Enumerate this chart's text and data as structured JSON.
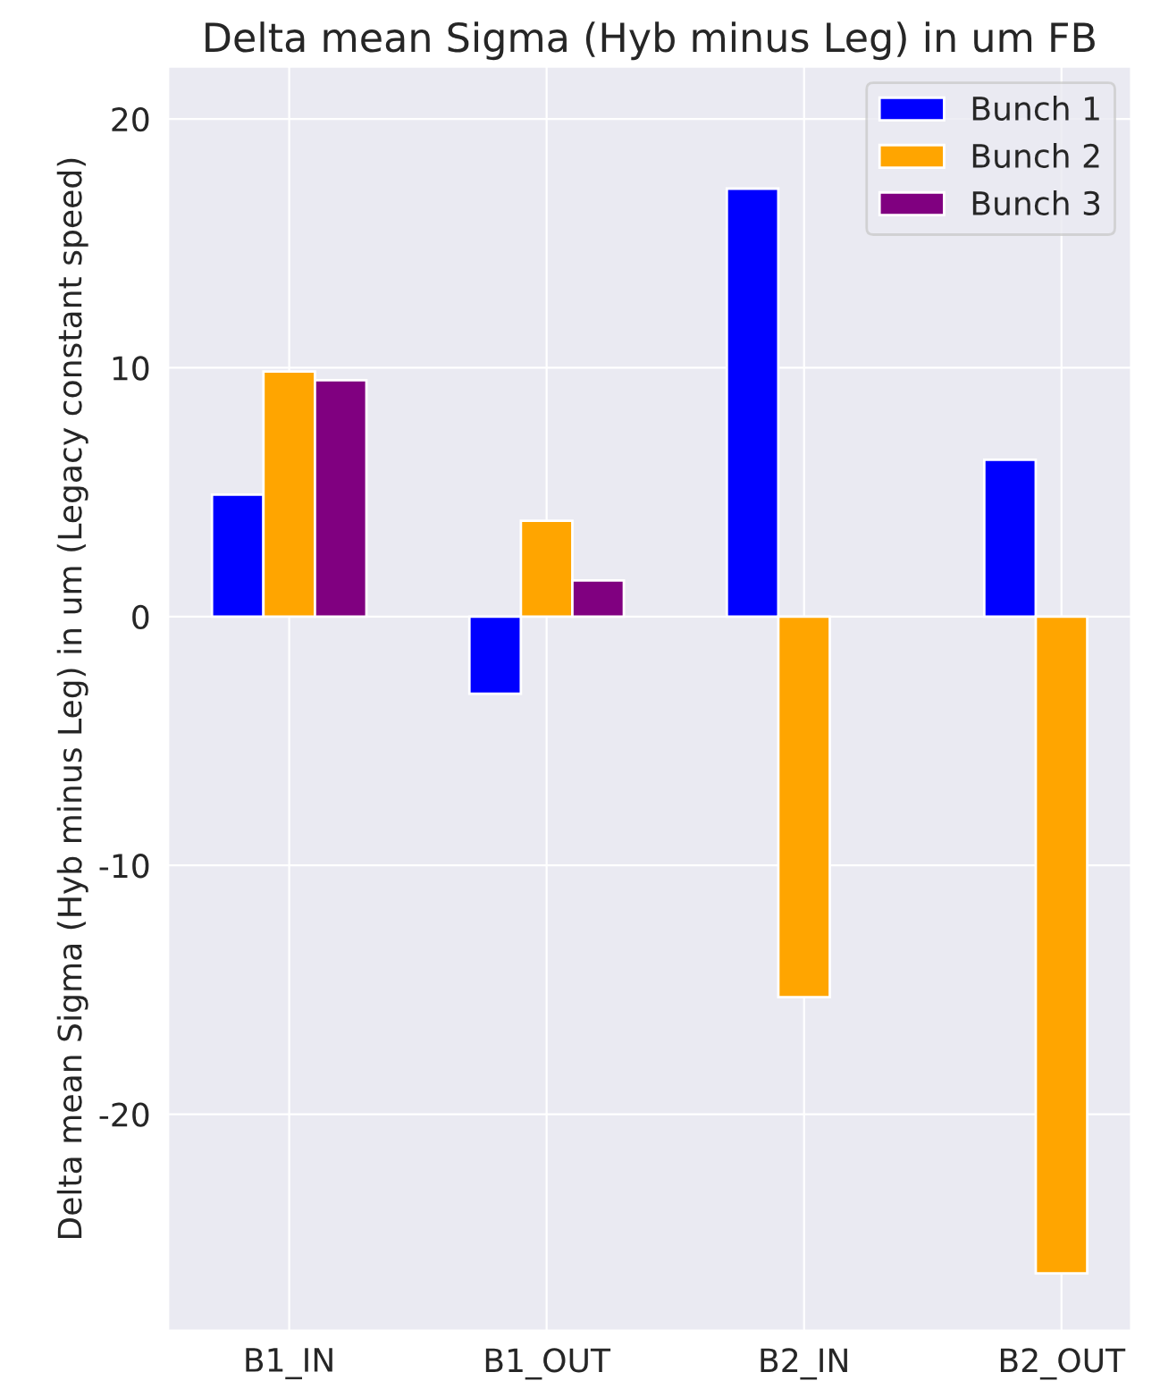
{
  "chart_data": {
    "type": "bar",
    "title": "Delta mean Sigma (Hyb minus Leg) in um FB",
    "ylabel": "Delta mean Sigma (Hyb minus Leg) in um (Legacy constant speed)",
    "categories": [
      "B1_IN",
      "B1_OUT",
      "B2_IN",
      "B2_OUT"
    ],
    "series": [
      {
        "name": "Bunch 1",
        "color": "#0000ff",
        "values": [
          4.9,
          -3.1,
          17.2,
          6.3
        ]
      },
      {
        "name": "Bunch 2",
        "color": "#ffa500",
        "values": [
          9.85,
          3.85,
          -15.3,
          -26.4
        ]
      },
      {
        "name": "Bunch 3",
        "color": "#800080",
        "values": [
          9.5,
          1.45,
          null,
          null
        ]
      }
    ],
    "ylim": [
      -28.7,
      22.1
    ],
    "yticks": [
      -20,
      -10,
      0,
      10,
      20
    ],
    "grid": true,
    "legend": "top right"
  }
}
